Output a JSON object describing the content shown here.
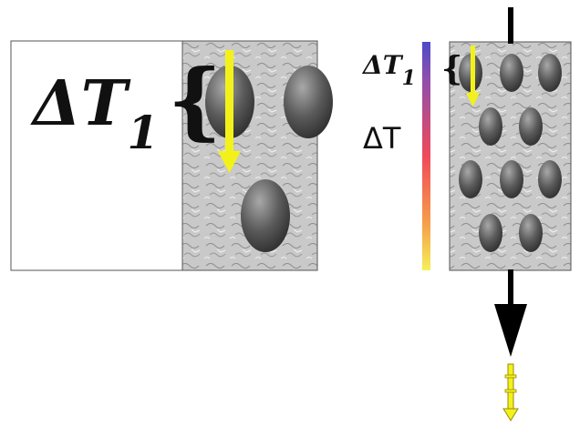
{
  "labels": {
    "left_delta_t1_main": "ΔT",
    "left_delta_t1_sub": "1",
    "left_brace": "{",
    "right_delta_t1_main": "ΔT",
    "right_delta_t1_sub": "1",
    "right_brace": "{",
    "right_delta_t": "ΔT"
  },
  "colors": {
    "tile_fill": "#c8c8c8",
    "tile_texture": "#8a8a8a",
    "ellipse_dark": "#3c3c3c",
    "ellipse_light": "#9a9a9a",
    "arrow_yellow": "#f2f21a",
    "arrow_black": "#000000",
    "gradient_top": "#4b4bc8",
    "gradient_mid": "#f04a5a",
    "gradient_bottom": "#f5f05a",
    "text": "#111111"
  },
  "icons": {
    "left_arrow": "yellow-down-arrow-icon",
    "right_small_arrow": "yellow-down-arrow-icon",
    "vertical_flow": "black-down-arrow-icon",
    "bottom_chain": "yellow-chain-arrow-icon"
  }
}
